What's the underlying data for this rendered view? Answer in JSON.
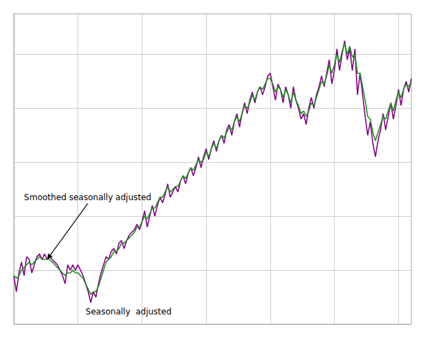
{
  "chart_data": {
    "type": "line",
    "x": [
      0,
      1,
      2,
      3,
      4,
      5,
      6,
      7,
      8,
      9,
      10,
      11,
      12,
      13,
      14,
      15,
      16,
      17,
      18,
      19,
      20,
      21,
      22,
      23,
      24,
      25,
      26,
      27,
      28,
      29,
      30,
      31,
      32,
      33,
      34,
      35,
      36,
      37,
      38,
      39,
      40,
      41,
      42,
      43,
      44,
      45,
      46,
      47,
      48,
      49,
      50,
      51,
      52,
      53,
      54,
      55,
      56,
      57,
      58,
      59,
      60,
      61,
      62,
      63,
      64,
      65,
      66,
      67,
      68,
      69,
      70,
      71,
      72,
      73,
      74,
      75,
      76,
      77,
      78,
      79,
      80,
      81,
      82,
      83,
      84,
      85,
      86,
      87,
      88,
      89,
      90,
      91,
      92,
      93,
      94,
      95,
      96,
      97,
      98,
      99,
      100,
      101,
      102,
      103,
      104,
      105,
      106,
      107,
      108,
      109,
      110,
      111,
      112,
      113,
      114,
      115,
      116,
      117,
      118,
      119,
      120,
      121,
      122,
      123,
      124,
      125,
      126,
      127,
      128,
      129,
      130,
      131,
      132,
      133,
      134,
      135,
      136,
      137,
      138,
      139,
      140,
      141,
      142,
      143,
      144,
      145,
      146,
      147,
      148,
      149,
      150,
      151,
      152,
      153,
      154,
      155
    ],
    "series": [
      {
        "color": "#800080",
        "values": [
          78,
          72,
          79,
          83,
          78,
          85,
          84,
          79,
          82,
          85,
          86,
          84,
          86,
          84,
          85,
          84,
          83,
          82,
          80,
          78,
          75,
          82,
          80,
          82,
          80,
          82,
          80,
          78,
          75,
          72,
          68,
          72,
          70,
          75,
          79,
          82,
          85,
          84,
          87,
          88,
          86,
          90,
          91,
          88,
          91,
          93,
          94,
          95,
          97,
          95,
          98,
          102,
          96,
          100,
          104,
          100,
          104,
          107,
          105,
          108,
          112,
          107,
          109,
          111,
          109,
          113,
          115,
          112,
          116,
          118,
          115,
          118,
          122,
          118,
          122,
          125,
          121,
          125,
          128,
          124,
          128,
          130,
          127,
          132,
          134,
          130,
          135,
          138,
          133,
          138,
          142,
          138,
          143,
          146,
          142,
          146,
          148,
          145,
          148,
          152,
          153,
          148,
          143,
          149,
          147,
          142,
          148,
          145,
          140,
          148,
          143,
          140,
          136,
          138,
          134,
          140,
          144,
          140,
          145,
          148,
          152,
          148,
          153,
          158,
          149,
          154,
          162,
          154,
          160,
          165,
          158,
          162,
          154,
          162,
          145,
          153,
          145,
          137,
          130,
          135,
          127,
          122,
          128,
          132,
          138,
          132,
          137,
          142,
          136,
          141,
          147,
          141,
          147,
          150,
          146,
          151
        ]
      },
      {
        "color": "#228B22",
        "values": [
          78,
          77,
          78,
          80,
          81,
          82,
          83,
          82,
          83,
          84,
          85,
          84,
          84,
          84,
          84,
          83,
          82,
          81,
          80,
          79,
          78,
          79,
          79,
          80,
          79,
          79,
          78,
          77,
          75,
          73,
          71,
          72,
          72,
          74,
          77,
          80,
          83,
          84,
          85,
          87,
          87,
          88,
          90,
          90,
          91,
          92,
          93,
          94,
          96,
          96,
          98,
          100,
          99,
          101,
          103,
          103,
          105,
          107,
          107,
          109,
          111,
          109,
          110,
          111,
          111,
          113,
          115,
          114,
          116,
          118,
          117,
          119,
          121,
          120,
          121,
          124,
          122,
          125,
          127,
          125,
          128,
          130,
          129,
          131,
          133,
          132,
          135,
          137,
          135,
          138,
          141,
          140,
          142,
          145,
          143,
          146,
          148,
          147,
          149,
          151,
          151,
          149,
          146,
          148,
          147,
          144,
          147,
          145,
          142,
          146,
          143,
          141,
          138,
          139,
          137,
          139,
          142,
          141,
          144,
          147,
          150,
          149,
          152,
          156,
          153,
          156,
          160,
          157,
          161,
          164,
          160,
          163,
          159,
          160,
          153,
          153,
          148,
          143,
          137,
          136,
          131,
          128,
          131,
          134,
          137,
          136,
          139,
          142,
          139,
          143,
          146,
          144,
          147,
          149,
          148,
          150
        ]
      }
    ],
    "xlim": [
      0,
      155
    ],
    "xticks": [
      0,
      25,
      50,
      75,
      100,
      125,
      150
    ],
    "ylim": [
      60,
      175
    ],
    "yticks": [
      60,
      80,
      100,
      120,
      140,
      160
    ],
    "grid": true,
    "tick_labels": false,
    "annotations": [
      {
        "text": "Smoothed seasonally adjusted",
        "x": 4,
        "y": 107,
        "arrow_x": 13,
        "arrow_y": 84
      },
      {
        "text": "Seasonally  adjusted",
        "x": 28,
        "y": 63
      }
    ]
  }
}
